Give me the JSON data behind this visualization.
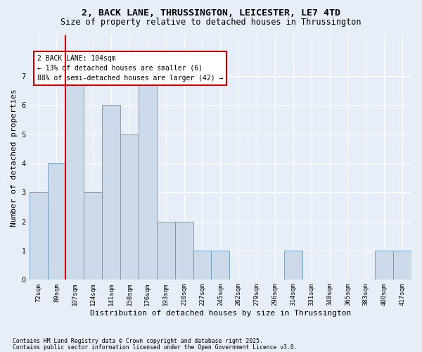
{
  "title1": "2, BACK LANE, THRUSSINGTON, LEICESTER, LE7 4TD",
  "title2": "Size of property relative to detached houses in Thrussington",
  "xlabel": "Distribution of detached houses by size in Thrussington",
  "ylabel": "Number of detached properties",
  "categories": [
    "72sqm",
    "89sqm",
    "107sqm",
    "124sqm",
    "141sqm",
    "158sqm",
    "176sqm",
    "193sqm",
    "210sqm",
    "227sqm",
    "245sqm",
    "262sqm",
    "279sqm",
    "296sqm",
    "314sqm",
    "331sqm",
    "348sqm",
    "365sqm",
    "383sqm",
    "400sqm",
    "417sqm"
  ],
  "values": [
    3,
    4,
    7,
    3,
    6,
    5,
    7,
    2,
    2,
    1,
    1,
    0,
    0,
    0,
    1,
    0,
    0,
    0,
    0,
    1,
    1
  ],
  "bar_color": "#ccd9e8",
  "bar_edge_color": "#6699bb",
  "highlight_color": "#cc0000",
  "annotation_text": "2 BACK LANE: 104sqm\n← 13% of detached houses are smaller (6)\n88% of semi-detached houses are larger (42) →",
  "annotation_box_color": "white",
  "annotation_box_edge_color": "#cc0000",
  "ylim": [
    0,
    8.4
  ],
  "yticks": [
    0,
    1,
    2,
    3,
    4,
    5,
    6,
    7
  ],
  "footer1": "Contains HM Land Registry data © Crown copyright and database right 2025.",
  "footer2": "Contains public sector information licensed under the Open Government Licence v3.0.",
  "bg_color": "#e8eef8",
  "plot_bg_color": "#e8eef8",
  "grid_color": "white",
  "title_fontsize": 9.5,
  "subtitle_fontsize": 8.5,
  "tick_fontsize": 6.5,
  "label_fontsize": 8,
  "annotation_fontsize": 7,
  "footer_fontsize": 5.8
}
